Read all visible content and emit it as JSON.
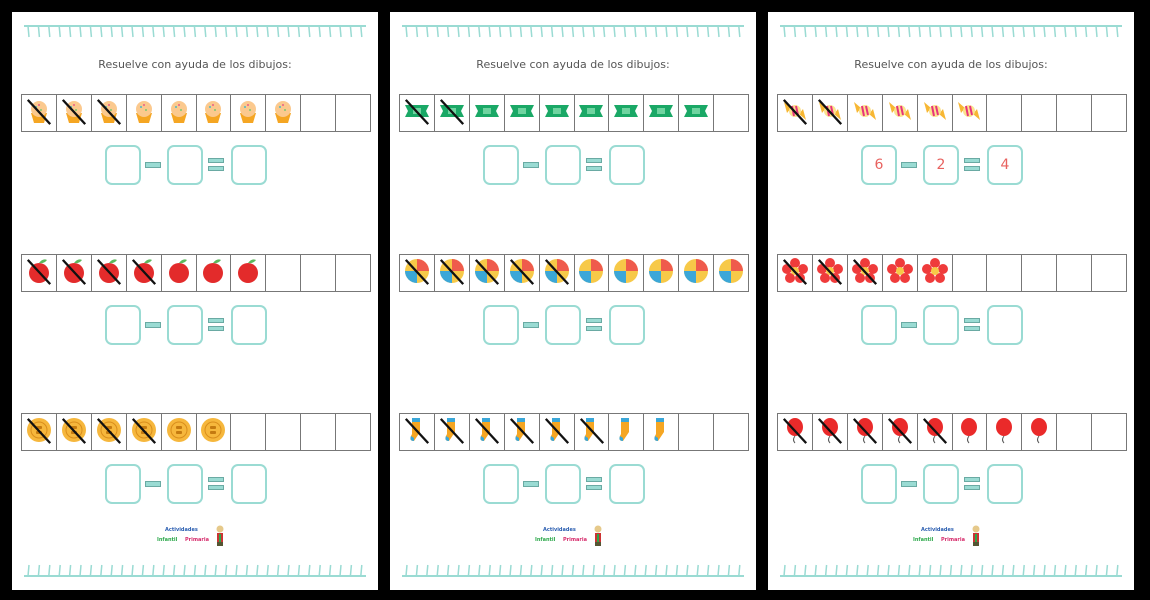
{
  "colors": {
    "accent": "#9adbd3",
    "answer": "#e8625f",
    "background": "#000000"
  },
  "logo": {
    "line1": "Actividades",
    "line2": "Infantil",
    "line3": "Primaria"
  },
  "pages": [
    {
      "title": "Resuelve con ayuda de los dibujos:",
      "rows": [
        {
          "icon": "cupcake-icon",
          "count": 8,
          "crossed": 3,
          "answer": [
            "",
            "",
            ""
          ]
        },
        {
          "icon": "apple-icon",
          "count": 7,
          "crossed": 4,
          "answer": [
            "",
            "",
            ""
          ]
        },
        {
          "icon": "button-icon",
          "count": 6,
          "crossed": 4,
          "answer": [
            "",
            "",
            ""
          ]
        }
      ]
    },
    {
      "title": "Resuelve con ayuda de los dibujos:",
      "rows": [
        {
          "icon": "sharpener-icon",
          "count": 9,
          "crossed": 2,
          "answer": [
            "",
            "",
            ""
          ]
        },
        {
          "icon": "ball-icon",
          "count": 10,
          "crossed": 5,
          "answer": [
            "",
            "",
            ""
          ]
        },
        {
          "icon": "sock-icon",
          "count": 8,
          "crossed": 6,
          "answer": [
            "",
            "",
            ""
          ]
        }
      ]
    },
    {
      "title": "Resuelve con ayuda de los dibujos:",
      "rows": [
        {
          "icon": "candy-icon",
          "count": 6,
          "crossed": 2,
          "answer": [
            "6",
            "2",
            "4"
          ]
        },
        {
          "icon": "flower-icon",
          "count": 5,
          "crossed": 3,
          "answer": [
            "",
            "",
            ""
          ]
        },
        {
          "icon": "balloon-icon",
          "count": 8,
          "crossed": 5,
          "answer": [
            "",
            "",
            ""
          ]
        }
      ]
    }
  ]
}
